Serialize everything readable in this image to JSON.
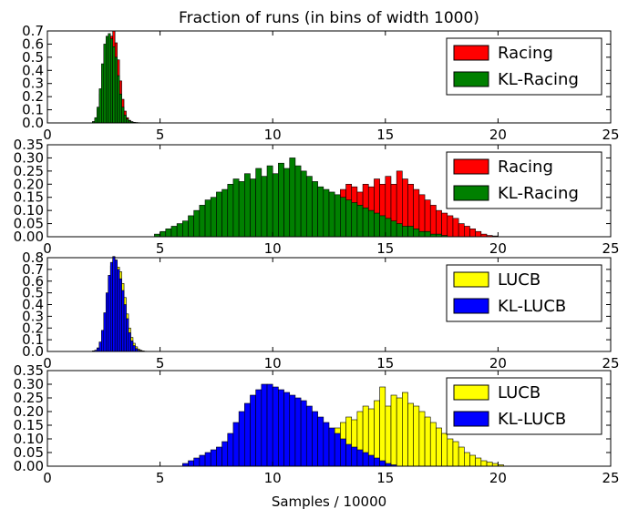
{
  "chart_data": [
    {
      "type": "bar",
      "title": "Fraction of runs (in bins of width 1000)",
      "xlabel": "",
      "ylabel": "",
      "xlim": [
        0,
        25
      ],
      "ylim": [
        0,
        0.7
      ],
      "xticks": [
        "0",
        "5",
        "10",
        "15",
        "20",
        "25"
      ],
      "yticks": [
        "0.0",
        "0.1",
        "0.2",
        "0.3",
        "0.4",
        "0.5",
        "0.6",
        "0.7"
      ],
      "legend_position": "top-right",
      "bin_width": 0.1,
      "series": [
        {
          "name": "Racing",
          "color": "#ff0000",
          "x_start": 2.0,
          "values": [
            0.01,
            0.03,
            0.1,
            0.22,
            0.4,
            0.57,
            0.62,
            0.64,
            0.66,
            0.7,
            0.61,
            0.48,
            0.32,
            0.18,
            0.09,
            0.04,
            0.02,
            0.01,
            0.005,
            0.003,
            0.002,
            0.001
          ]
        },
        {
          "name": "KL-Racing",
          "color": "#008000",
          "x_start": 2.0,
          "values": [
            0.01,
            0.04,
            0.12,
            0.26,
            0.45,
            0.6,
            0.66,
            0.68,
            0.64,
            0.58,
            0.5,
            0.36,
            0.22,
            0.12,
            0.06,
            0.03,
            0.015,
            0.008,
            0.004,
            0.002,
            0.001
          ]
        }
      ]
    },
    {
      "type": "bar",
      "title": "",
      "xlabel": "",
      "ylabel": "",
      "xlim": [
        0,
        25
      ],
      "ylim": [
        0,
        0.35
      ],
      "xticks": [
        "0",
        "5",
        "10",
        "15",
        "20",
        "25"
      ],
      "yticks": [
        "0.00",
        "0.05",
        "0.10",
        "0.15",
        "0.20",
        "0.25",
        "0.30",
        "0.35"
      ],
      "legend_position": "top-right",
      "bin_width": 0.25,
      "series": [
        {
          "name": "Racing",
          "color": "#ff0000",
          "x_start": 11.0,
          "values": [
            0.01,
            0.02,
            0.04,
            0.06,
            0.08,
            0.11,
            0.13,
            0.15,
            0.18,
            0.2,
            0.19,
            0.17,
            0.2,
            0.19,
            0.22,
            0.2,
            0.23,
            0.2,
            0.25,
            0.22,
            0.2,
            0.18,
            0.16,
            0.14,
            0.12,
            0.1,
            0.09,
            0.08,
            0.07,
            0.05,
            0.04,
            0.03,
            0.02,
            0.01,
            0.005,
            0.003
          ]
        },
        {
          "name": "KL-Racing",
          "color": "#008000",
          "x_start": 4.75,
          "values": [
            0.01,
            0.02,
            0.03,
            0.04,
            0.05,
            0.06,
            0.08,
            0.1,
            0.12,
            0.14,
            0.15,
            0.17,
            0.18,
            0.2,
            0.22,
            0.21,
            0.24,
            0.22,
            0.26,
            0.23,
            0.27,
            0.24,
            0.28,
            0.26,
            0.3,
            0.27,
            0.25,
            0.23,
            0.21,
            0.19,
            0.18,
            0.17,
            0.16,
            0.15,
            0.14,
            0.13,
            0.12,
            0.11,
            0.1,
            0.09,
            0.08,
            0.07,
            0.06,
            0.05,
            0.04,
            0.04,
            0.03,
            0.02,
            0.02,
            0.01,
            0.01,
            0.005
          ]
        }
      ]
    },
    {
      "type": "bar",
      "title": "",
      "xlabel": "",
      "ylabel": "",
      "xlim": [
        0,
        25
      ],
      "ylim": [
        0,
        0.8
      ],
      "xticks": [
        "0",
        "5",
        "10",
        "15",
        "20",
        "25"
      ],
      "yticks": [
        "0.0",
        "0.1",
        "0.2",
        "0.3",
        "0.4",
        "0.5",
        "0.6",
        "0.7",
        "0.8"
      ],
      "legend_position": "top-right",
      "bin_width": 0.1,
      "series": [
        {
          "name": "LUCB",
          "color": "#ffff00",
          "x_start": 2.0,
          "values": [
            0.005,
            0.01,
            0.03,
            0.08,
            0.18,
            0.32,
            0.48,
            0.62,
            0.73,
            0.78,
            0.78,
            0.72,
            0.68,
            0.58,
            0.46,
            0.32,
            0.2,
            0.12,
            0.07,
            0.04,
            0.02,
            0.01,
            0.005,
            0.002
          ]
        },
        {
          "name": "KL-LUCB",
          "color": "#0000ff",
          "x_start": 2.0,
          "values": [
            0.005,
            0.01,
            0.03,
            0.08,
            0.18,
            0.33,
            0.5,
            0.65,
            0.76,
            0.81,
            0.78,
            0.7,
            0.62,
            0.52,
            0.4,
            0.28,
            0.16,
            0.09,
            0.05,
            0.025,
            0.01,
            0.005
          ]
        }
      ]
    },
    {
      "type": "bar",
      "title": "",
      "xlabel": "Samples / 10000",
      "ylabel": "",
      "xlim": [
        0,
        25
      ],
      "ylim": [
        0,
        0.35
      ],
      "xticks": [
        "0",
        "5",
        "10",
        "15",
        "20",
        "25"
      ],
      "yticks": [
        "0.00",
        "0.05",
        "0.10",
        "0.15",
        "0.20",
        "0.25",
        "0.30",
        "0.35"
      ],
      "legend_position": "top-right",
      "bin_width": 0.25,
      "series": [
        {
          "name": "LUCB",
          "color": "#ffff00",
          "x_start": 11.0,
          "values": [
            0.01,
            0.02,
            0.03,
            0.05,
            0.07,
            0.09,
            0.11,
            0.14,
            0.16,
            0.18,
            0.17,
            0.2,
            0.22,
            0.21,
            0.24,
            0.29,
            0.22,
            0.26,
            0.25,
            0.27,
            0.23,
            0.22,
            0.2,
            0.18,
            0.16,
            0.14,
            0.12,
            0.1,
            0.09,
            0.07,
            0.05,
            0.04,
            0.03,
            0.02,
            0.015,
            0.01,
            0.005
          ]
        },
        {
          "name": "KL-LUCB",
          "color": "#0000ff",
          "x_start": 6.0,
          "values": [
            0.01,
            0.02,
            0.03,
            0.04,
            0.05,
            0.06,
            0.07,
            0.09,
            0.12,
            0.16,
            0.2,
            0.23,
            0.26,
            0.28,
            0.3,
            0.3,
            0.29,
            0.28,
            0.27,
            0.26,
            0.25,
            0.24,
            0.22,
            0.2,
            0.18,
            0.16,
            0.14,
            0.12,
            0.1,
            0.08,
            0.07,
            0.06,
            0.05,
            0.04,
            0.03,
            0.02,
            0.01,
            0.005
          ]
        }
      ]
    }
  ]
}
